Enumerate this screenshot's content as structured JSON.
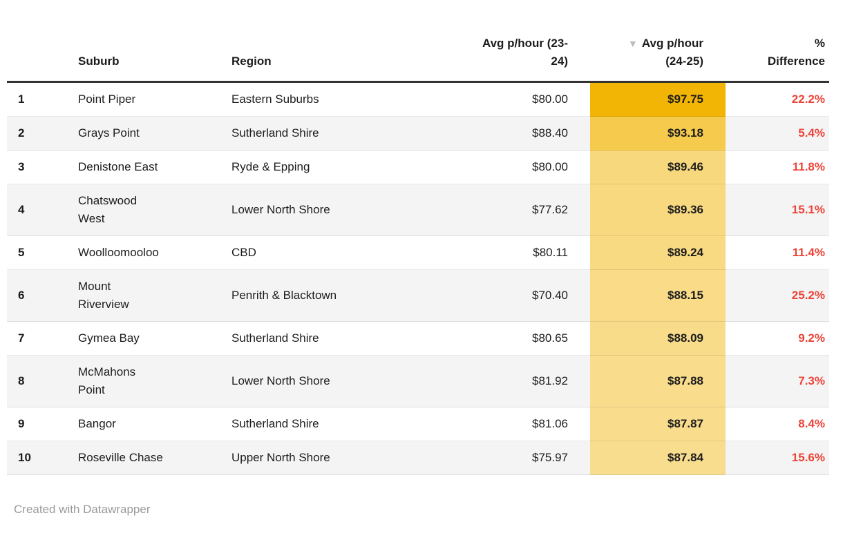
{
  "chart_data": {
    "type": "table",
    "sort_icon": "▼",
    "sort": {
      "column": "avg2425",
      "direction": "desc"
    },
    "heatmap_column": "avg2425",
    "columns": [
      {
        "key": "rank",
        "label": "",
        "align": "left"
      },
      {
        "key": "suburb",
        "label": "Suburb",
        "align": "left"
      },
      {
        "key": "region",
        "label": "Region",
        "align": "left"
      },
      {
        "key": "avg2324",
        "label": "Avg p/hour (23-24)",
        "align": "right"
      },
      {
        "key": "avg2425",
        "label": "Avg p/hour (24-25)",
        "align": "right",
        "sorted": "desc"
      },
      {
        "key": "diff",
        "label": "% Difference",
        "align": "right"
      }
    ],
    "rows": [
      {
        "rank": "1",
        "suburb": "Point Piper",
        "region": "Eastern Suburbs",
        "avg2324": "$80.00",
        "avg2425": "$97.75",
        "diff": "22.2%",
        "heat": "#f2b505"
      },
      {
        "rank": "2",
        "suburb": "Grays Point",
        "region": "Sutherland Shire",
        "avg2324": "$88.40",
        "avg2425": "$93.18",
        "diff": "5.4%",
        "heat": "#f6ca4d"
      },
      {
        "rank": "3",
        "suburb": "Denistone East",
        "region": "Ryde & Epping",
        "avg2324": "$80.00",
        "avg2425": "$89.46",
        "diff": "11.8%",
        "heat": "#f8d87d"
      },
      {
        "rank": "4",
        "suburb": "Chatswood\nWest",
        "region": "Lower North Shore",
        "avg2324": "$77.62",
        "avg2425": "$89.36",
        "diff": "15.1%",
        "heat": "#f8d980"
      },
      {
        "rank": "5",
        "suburb": "Woolloomooloo",
        "region": "CBD",
        "avg2324": "$80.11",
        "avg2425": "$89.24",
        "diff": "11.4%",
        "heat": "#f8da82"
      },
      {
        "rank": "6",
        "suburb": "Mount\nRiverview",
        "region": "Penrith & Blacktown",
        "avg2324": "$70.40",
        "avg2425": "$88.15",
        "diff": "25.2%",
        "heat": "#f9db88"
      },
      {
        "rank": "7",
        "suburb": "Gymea Bay",
        "region": "Sutherland Shire",
        "avg2324": "$80.65",
        "avg2425": "$88.09",
        "diff": "9.2%",
        "heat": "#f9dc8a"
      },
      {
        "rank": "8",
        "suburb": "McMahons\nPoint",
        "region": "Lower North Shore",
        "avg2324": "$81.92",
        "avg2425": "$87.88",
        "diff": "7.3%",
        "heat": "#f9dc8c"
      },
      {
        "rank": "9",
        "suburb": "Bangor",
        "region": "Sutherland Shire",
        "avg2324": "$81.06",
        "avg2425": "$87.87",
        "diff": "8.4%",
        "heat": "#f9dc8c"
      },
      {
        "rank": "10",
        "suburb": "Roseville Chase",
        "region": "Upper North Shore",
        "avg2324": "$75.97",
        "avg2425": "$87.84",
        "diff": "15.6%",
        "heat": "#f9dd8e"
      }
    ]
  },
  "colors": {
    "header_rule": "#333333",
    "zebra_row": "#f4f4f4",
    "diff_red": "#ed4337",
    "sort_arrow_gray": "#bbbbbb",
    "footer_gray": "#9a9a9a",
    "text": "#1c1c1c"
  },
  "footer": {
    "credit": "Created with Datawrapper"
  }
}
